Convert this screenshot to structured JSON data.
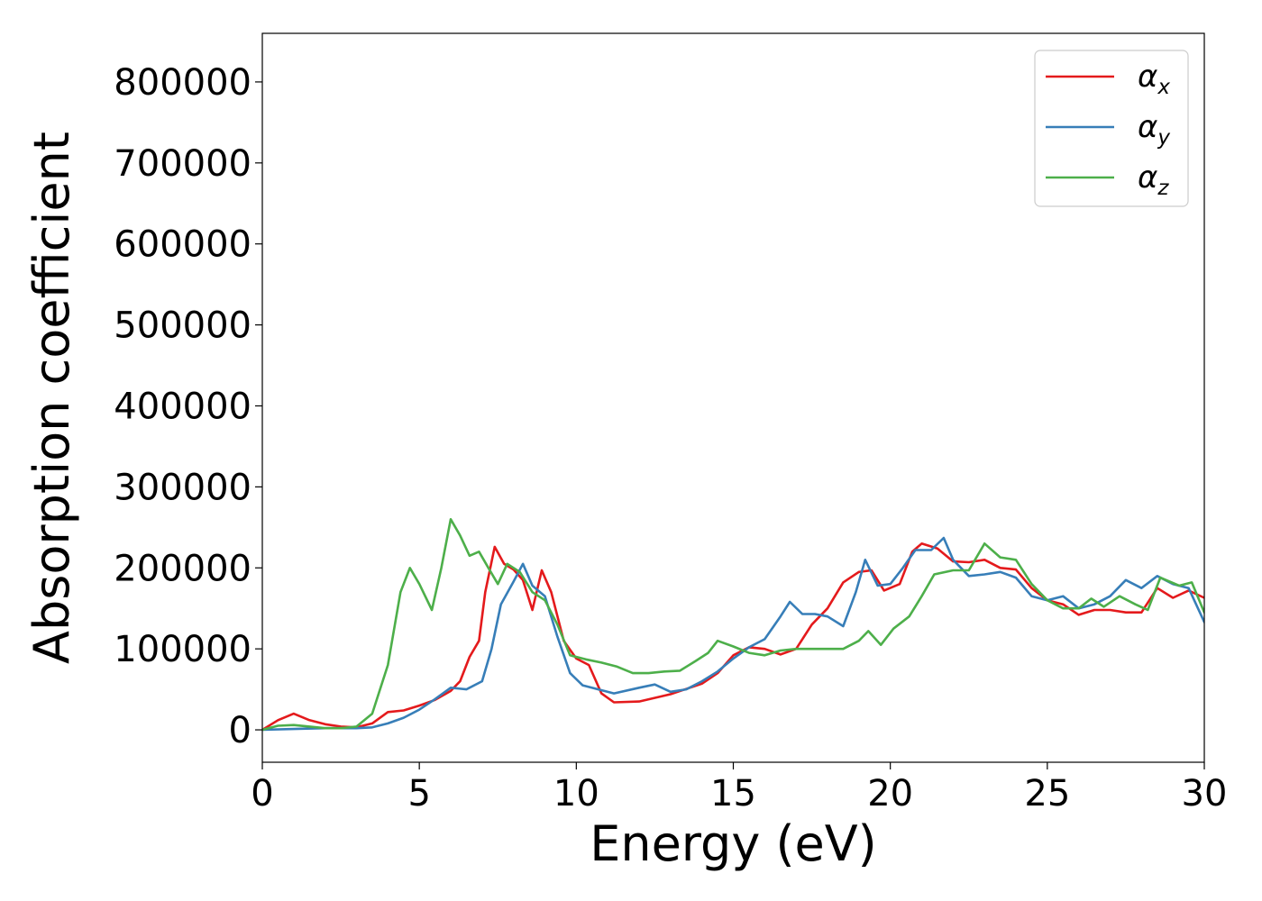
{
  "chart_data": {
    "type": "line",
    "xlabel": "Energy (eV)",
    "ylabel": "Absorption coefficient",
    "xlim": [
      0,
      30
    ],
    "ylim": [
      -40000,
      860000
    ],
    "x_ticks": [
      0,
      5,
      10,
      15,
      20,
      25,
      30
    ],
    "y_ticks": [
      0,
      100000,
      200000,
      300000,
      400000,
      500000,
      600000,
      700000,
      800000
    ],
    "grid": false,
    "legend_position": "top-right",
    "series": [
      {
        "name": "α_x",
        "legend_base": "α",
        "legend_sub": "x",
        "color": "#e41a1c",
        "points": [
          [
            0,
            0
          ],
          [
            0.5,
            12000
          ],
          [
            1,
            20000
          ],
          [
            1.5,
            12000
          ],
          [
            2,
            7000
          ],
          [
            2.5,
            4000
          ],
          [
            3,
            3000
          ],
          [
            3.5,
            8000
          ],
          [
            4,
            22000
          ],
          [
            4.5,
            24000
          ],
          [
            5,
            30000
          ],
          [
            5.5,
            37000
          ],
          [
            6,
            48000
          ],
          [
            6.3,
            60000
          ],
          [
            6.6,
            90000
          ],
          [
            6.9,
            110000
          ],
          [
            7.1,
            170000
          ],
          [
            7.4,
            226000
          ],
          [
            7.7,
            205000
          ],
          [
            8,
            198000
          ],
          [
            8.3,
            185000
          ],
          [
            8.6,
            148000
          ],
          [
            8.9,
            197000
          ],
          [
            9.2,
            170000
          ],
          [
            9.6,
            110000
          ],
          [
            10,
            88000
          ],
          [
            10.4,
            80000
          ],
          [
            10.8,
            45000
          ],
          [
            11.2,
            34000
          ],
          [
            12,
            35000
          ],
          [
            13,
            44000
          ],
          [
            14,
            57000
          ],
          [
            14.5,
            70000
          ],
          [
            15,
            92000
          ],
          [
            15.5,
            102000
          ],
          [
            16,
            100000
          ],
          [
            16.5,
            93000
          ],
          [
            17,
            100000
          ],
          [
            17.5,
            130000
          ],
          [
            18,
            150000
          ],
          [
            18.5,
            182000
          ],
          [
            19,
            195000
          ],
          [
            19.4,
            197000
          ],
          [
            19.8,
            172000
          ],
          [
            20.3,
            180000
          ],
          [
            20.7,
            220000
          ],
          [
            21,
            230000
          ],
          [
            21.5,
            224000
          ],
          [
            22,
            208000
          ],
          [
            22.5,
            207000
          ],
          [
            23,
            210000
          ],
          [
            23.5,
            200000
          ],
          [
            24,
            198000
          ],
          [
            24.5,
            175000
          ],
          [
            25,
            160000
          ],
          [
            25.5,
            155000
          ],
          [
            26,
            142000
          ],
          [
            26.5,
            148000
          ],
          [
            27,
            148000
          ],
          [
            27.5,
            145000
          ],
          [
            28,
            145000
          ],
          [
            28.5,
            175000
          ],
          [
            29,
            163000
          ],
          [
            29.5,
            172000
          ],
          [
            30,
            163000
          ]
        ]
      },
      {
        "name": "α_y",
        "legend_base": "α",
        "legend_sub": "y",
        "color": "#377eb8",
        "points": [
          [
            0,
            0
          ],
          [
            1,
            1000
          ],
          [
            2,
            2000
          ],
          [
            3,
            2000
          ],
          [
            3.5,
            3000
          ],
          [
            4,
            8000
          ],
          [
            4.5,
            15000
          ],
          [
            5,
            25000
          ],
          [
            5.5,
            38000
          ],
          [
            6,
            52000
          ],
          [
            6.5,
            50000
          ],
          [
            7,
            60000
          ],
          [
            7.3,
            100000
          ],
          [
            7.6,
            155000
          ],
          [
            8,
            183000
          ],
          [
            8.3,
            205000
          ],
          [
            8.6,
            178000
          ],
          [
            9,
            165000
          ],
          [
            9.4,
            115000
          ],
          [
            9.8,
            70000
          ],
          [
            10.2,
            55000
          ],
          [
            10.7,
            50000
          ],
          [
            11.2,
            45000
          ],
          [
            12,
            52000
          ],
          [
            12.5,
            56000
          ],
          [
            13,
            47000
          ],
          [
            13.5,
            50000
          ],
          [
            14,
            60000
          ],
          [
            14.5,
            72000
          ],
          [
            15,
            88000
          ],
          [
            15.5,
            102000
          ],
          [
            16,
            112000
          ],
          [
            16.5,
            140000
          ],
          [
            16.8,
            158000
          ],
          [
            17.2,
            143000
          ],
          [
            17.6,
            143000
          ],
          [
            18,
            140000
          ],
          [
            18.5,
            128000
          ],
          [
            18.9,
            170000
          ],
          [
            19.2,
            210000
          ],
          [
            19.6,
            178000
          ],
          [
            20,
            180000
          ],
          [
            20.4,
            200000
          ],
          [
            20.8,
            222000
          ],
          [
            21.3,
            222000
          ],
          [
            21.7,
            237000
          ],
          [
            22,
            210000
          ],
          [
            22.5,
            190000
          ],
          [
            23,
            192000
          ],
          [
            23.5,
            195000
          ],
          [
            24,
            188000
          ],
          [
            24.5,
            165000
          ],
          [
            25,
            160000
          ],
          [
            25.5,
            165000
          ],
          [
            26,
            150000
          ],
          [
            26.5,
            155000
          ],
          [
            27,
            165000
          ],
          [
            27.5,
            185000
          ],
          [
            28,
            175000
          ],
          [
            28.5,
            190000
          ],
          [
            29,
            180000
          ],
          [
            29.5,
            175000
          ],
          [
            30,
            133000
          ]
        ]
      },
      {
        "name": "α_z",
        "legend_base": "α",
        "legend_sub": "z",
        "color": "#4daf4a",
        "points": [
          [
            0,
            0
          ],
          [
            0.5,
            5000
          ],
          [
            1,
            6000
          ],
          [
            1.5,
            4000
          ],
          [
            2,
            2000
          ],
          [
            2.5,
            2000
          ],
          [
            3,
            4000
          ],
          [
            3.5,
            20000
          ],
          [
            4,
            80000
          ],
          [
            4.4,
            170000
          ],
          [
            4.7,
            200000
          ],
          [
            5,
            180000
          ],
          [
            5.4,
            148000
          ],
          [
            5.7,
            200000
          ],
          [
            6,
            260000
          ],
          [
            6.3,
            240000
          ],
          [
            6.6,
            215000
          ],
          [
            6.9,
            220000
          ],
          [
            7.2,
            200000
          ],
          [
            7.5,
            180000
          ],
          [
            7.8,
            205000
          ],
          [
            8.2,
            195000
          ],
          [
            8.6,
            170000
          ],
          [
            9,
            160000
          ],
          [
            9.4,
            130000
          ],
          [
            9.8,
            92000
          ],
          [
            10.3,
            87000
          ],
          [
            10.8,
            83000
          ],
          [
            11.3,
            78000
          ],
          [
            11.8,
            70000
          ],
          [
            12.3,
            70000
          ],
          [
            12.8,
            72000
          ],
          [
            13.3,
            73000
          ],
          [
            13.8,
            85000
          ],
          [
            14.2,
            95000
          ],
          [
            14.5,
            110000
          ],
          [
            15,
            103000
          ],
          [
            15.5,
            95000
          ],
          [
            16,
            92000
          ],
          [
            16.5,
            98000
          ],
          [
            17,
            100000
          ],
          [
            17.5,
            100000
          ],
          [
            18,
            100000
          ],
          [
            18.5,
            100000
          ],
          [
            19,
            110000
          ],
          [
            19.3,
            122000
          ],
          [
            19.7,
            105000
          ],
          [
            20.1,
            125000
          ],
          [
            20.6,
            140000
          ],
          [
            21,
            165000
          ],
          [
            21.4,
            192000
          ],
          [
            22,
            197000
          ],
          [
            22.5,
            197000
          ],
          [
            23,
            230000
          ],
          [
            23.5,
            213000
          ],
          [
            24,
            210000
          ],
          [
            24.5,
            180000
          ],
          [
            25,
            160000
          ],
          [
            25.5,
            150000
          ],
          [
            26,
            150000
          ],
          [
            26.4,
            162000
          ],
          [
            26.8,
            152000
          ],
          [
            27.3,
            165000
          ],
          [
            27.8,
            155000
          ],
          [
            28.2,
            148000
          ],
          [
            28.6,
            188000
          ],
          [
            29.2,
            178000
          ],
          [
            29.6,
            182000
          ],
          [
            30,
            145000
          ]
        ]
      }
    ]
  }
}
